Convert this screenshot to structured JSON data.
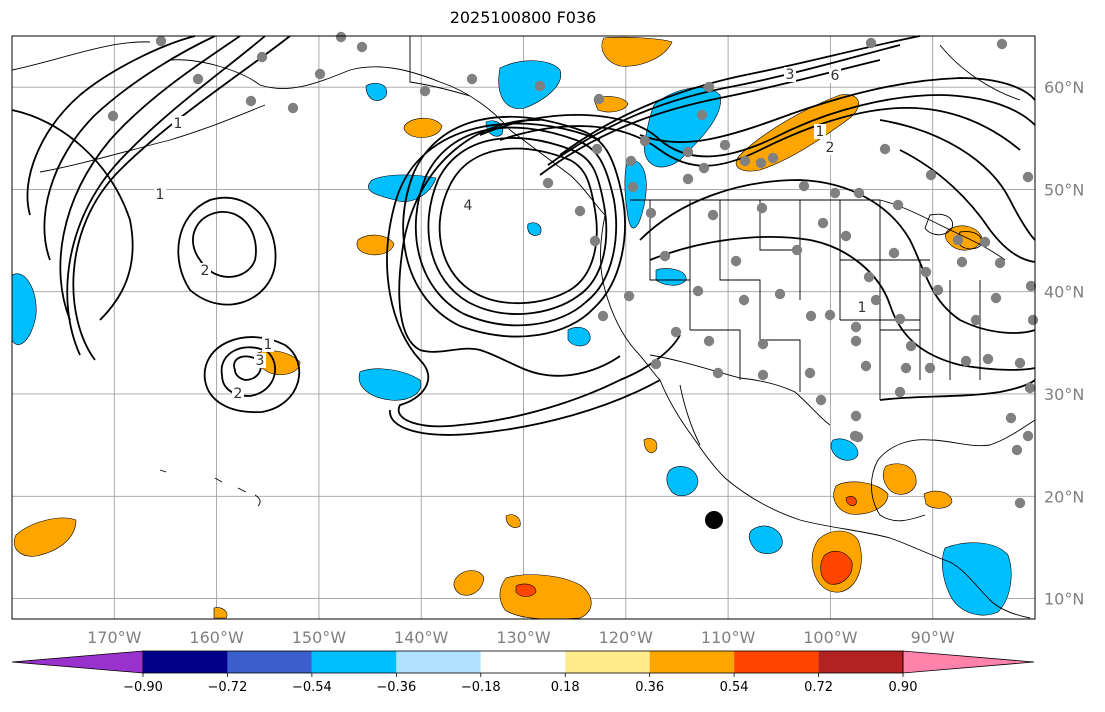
{
  "title": "2025100800 F036",
  "map": {
    "projection": "plate-carree",
    "lon_range": [
      -180,
      -80
    ],
    "lat_range": [
      8,
      65
    ],
    "lon_labels": [
      "170°W",
      "160°W",
      "150°W",
      "140°W",
      "130°W",
      "120°W",
      "110°W",
      "100°W",
      "90°W"
    ],
    "lat_labels": [
      "60°N",
      "50°N",
      "40°N",
      "30°N",
      "20°N",
      "10°N"
    ],
    "gridlines": true,
    "contour_labels": [
      "1",
      "2",
      "1",
      "3",
      "2",
      "1",
      "4",
      "1",
      "3",
      "6",
      "2",
      "1"
    ],
    "station_marker_color": "#808080",
    "highlight_marker_color": "#000000"
  },
  "colorbar": {
    "tick_labels": [
      "−0.90",
      "−0.72",
      "−0.54",
      "−0.36",
      "−0.18",
      "0.18",
      "0.36",
      "0.54",
      "0.72",
      "0.90"
    ],
    "colors": [
      "#9932cc",
      "#00008b",
      "#3a5fcd",
      "#00bfff",
      "#b0e2ff",
      "#ffffff",
      "#ffec8b",
      "#ffa500",
      "#ff4500",
      "#b22222",
      "#ff82ab"
    ]
  }
}
